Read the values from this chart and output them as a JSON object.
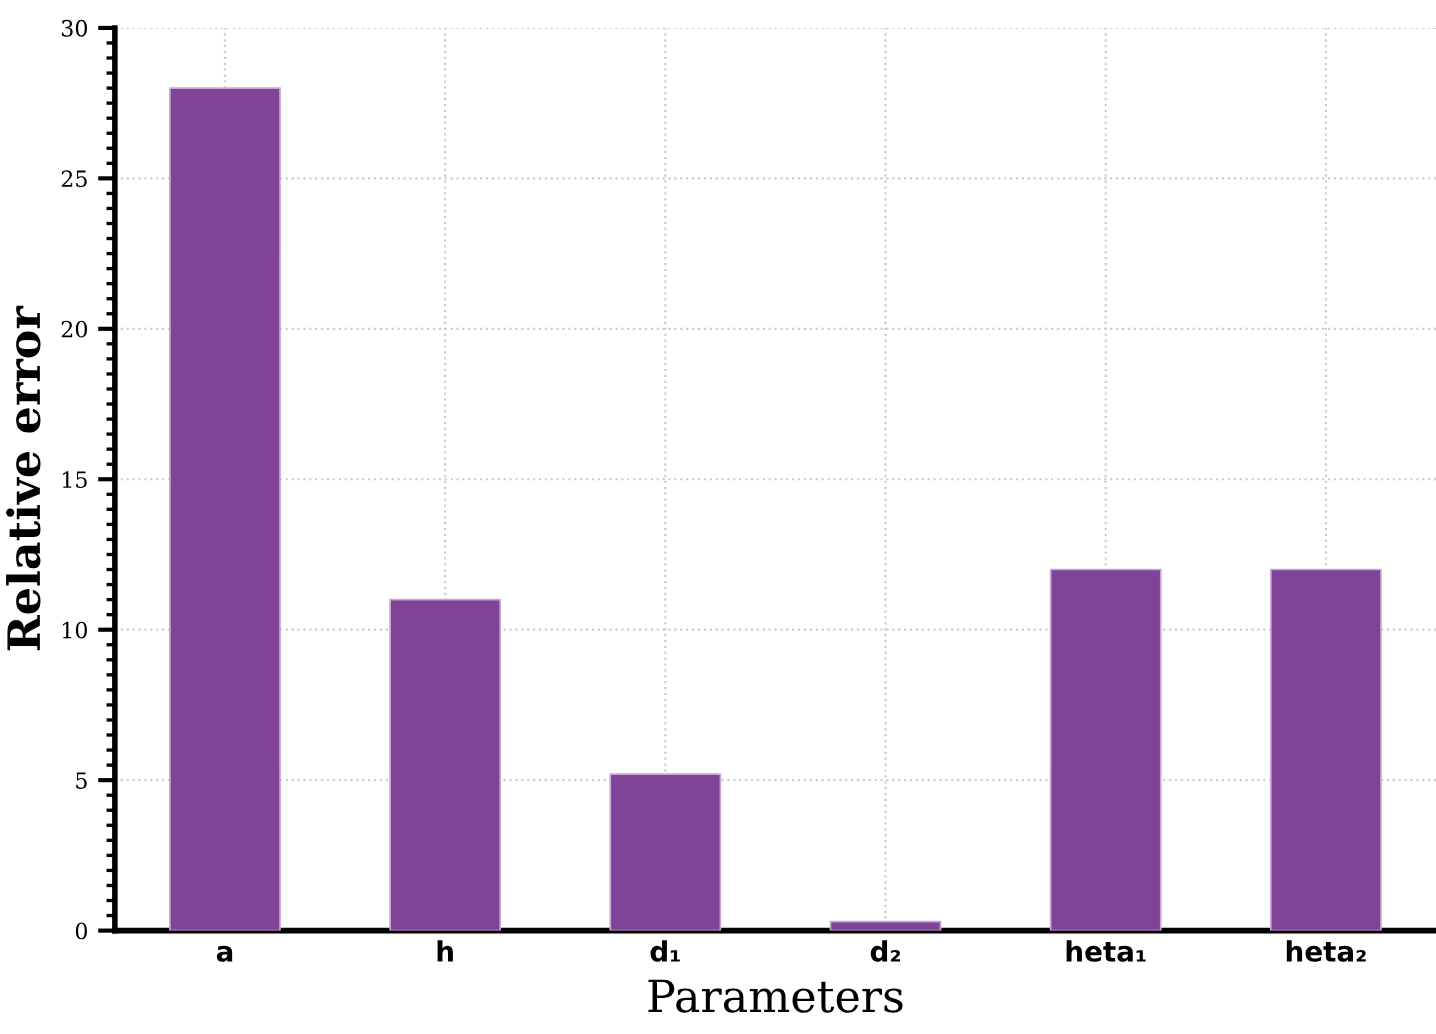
{
  "chart_data": {
    "type": "bar",
    "xlabel": "Parameters",
    "ylabel": "Relative error",
    "categories": [
      "a",
      "h",
      "d₁",
      "d₂",
      "heta₁",
      "heta₂"
    ],
    "values": [
      28,
      11,
      5.2,
      0.3,
      12,
      12
    ],
    "color": "#7f4496",
    "ylim": [
      0,
      30
    ],
    "yticks": [
      0,
      5,
      10,
      15,
      20,
      25,
      30
    ],
    "grid": true
  }
}
